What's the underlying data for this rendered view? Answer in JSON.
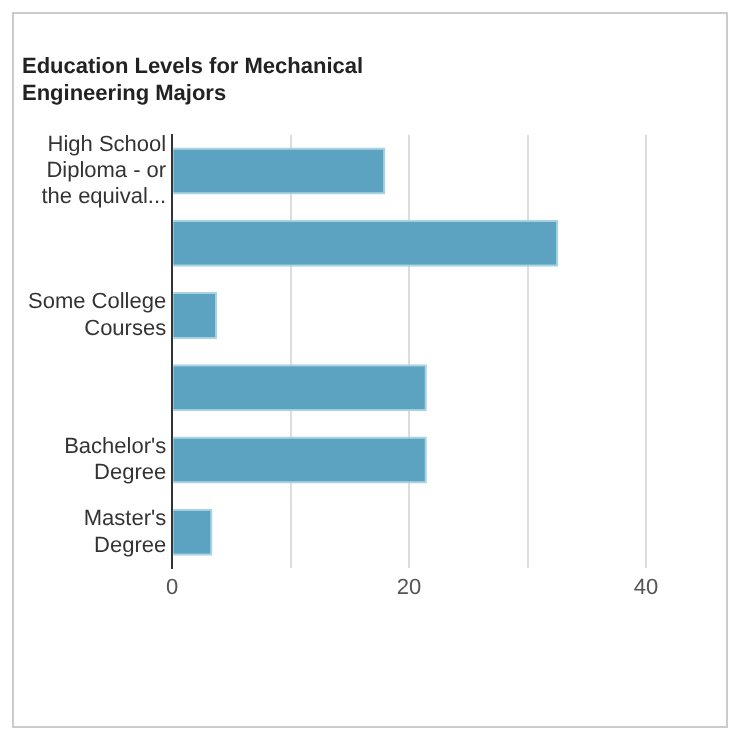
{
  "chart_data": {
    "type": "bar",
    "orientation": "horizontal",
    "title": "Education Levels for Mechanical Engineering Majors",
    "categories": [
      "High School Diploma - or the equival...",
      null,
      "Some College Courses",
      null,
      "Bachelor's Degree",
      "Master's Degree"
    ],
    "values": [
      18.0,
      32.6,
      3.8,
      21.5,
      21.5,
      3.4
    ],
    "color": "#5ba3c0",
    "xlim": [
      0,
      40
    ],
    "xticks": [
      0,
      {
        "value": 10,
        "label": null
      },
      20,
      {
        "value": 30,
        "label": null
      },
      40
    ],
    "grid": "x"
  }
}
